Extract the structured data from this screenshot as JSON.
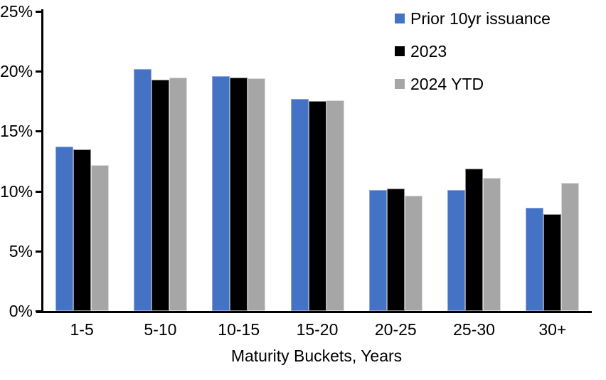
{
  "chart_data": {
    "type": "bar",
    "title": "",
    "xlabel": "Maturity Buckets, Years",
    "ylabel": "",
    "ylim": [
      0,
      25
    ],
    "grid": false,
    "legend_position": "top-right",
    "background_color": "#ffffff",
    "axis_color": "#000000",
    "y_ticks": [
      {
        "value": 0,
        "label": "0%"
      },
      {
        "value": 5,
        "label": "5%"
      },
      {
        "value": 10,
        "label": "10%"
      },
      {
        "value": 15,
        "label": "15%"
      },
      {
        "value": 20,
        "label": "20%"
      },
      {
        "value": 25,
        "label": "25%"
      }
    ],
    "categories": [
      "1-5",
      "5-10",
      "10-15",
      "15-20",
      "20-25",
      "25-30",
      "30+"
    ],
    "series": [
      {
        "name": "Prior 10yr issuance",
        "color": "#4472C4",
        "border_color": "#8FAADC",
        "values": [
          13.7,
          20.2,
          19.6,
          17.7,
          10.1,
          10.1,
          8.6
        ]
      },
      {
        "name": "2023",
        "color": "#000000",
        "border_color": "#8C8C8C",
        "values": [
          13.5,
          19.3,
          19.5,
          17.5,
          10.2,
          11.9,
          8.1
        ]
      },
      {
        "name": "2024 YTD",
        "color": "#A6A6A6",
        "border_color": "#D9D9D9",
        "values": [
          12.2,
          19.5,
          19.4,
          17.6,
          9.6,
          11.1,
          10.7
        ]
      }
    ]
  }
}
